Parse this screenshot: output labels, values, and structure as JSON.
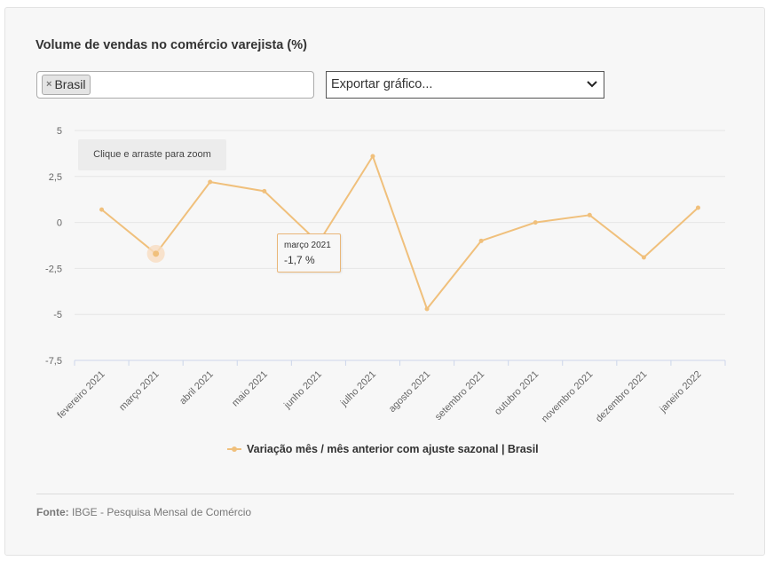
{
  "title": "Volume de vendas no comércio varejista (%)",
  "filter": {
    "tag_label": "Brasil",
    "remove_symbol": "×"
  },
  "export": {
    "placeholder": "Exportar gráfico..."
  },
  "zoom_hint": "Clique e arraste para zoom",
  "tooltip": {
    "label": "março 2021",
    "value": "-1,7 %"
  },
  "legend_label": "Variação mês / mês anterior com ajuste sazonal | Brasil",
  "source": {
    "prefix": "Fonte:",
    "text": " IBGE - Pesquisa Mensal de Comércio"
  },
  "colors": {
    "series": "#f0c07c",
    "hover_halo": "#f8dcc1",
    "tooltip_border": "#e9b678"
  },
  "chart_data": {
    "type": "line",
    "categories": [
      "fevereiro 2021",
      "março 2021",
      "abril 2021",
      "maio 2021",
      "junho 2021",
      "julho 2021",
      "agosto 2021",
      "setembro 2021",
      "outubro 2021",
      "novembro 2021",
      "dezembro 2021",
      "janeiro 2022"
    ],
    "series": [
      {
        "name": "Variação mês / mês anterior com ajuste sazonal | Brasil",
        "values": [
          0.7,
          -1.7,
          2.2,
          1.7,
          -1.1,
          3.6,
          -4.7,
          -1.0,
          0.0,
          0.4,
          -1.9,
          0.8
        ]
      }
    ],
    "y_ticks": [
      5,
      2.5,
      0,
      -2.5,
      -5,
      -7.5
    ],
    "y_tick_labels": [
      "5",
      "2,5",
      "0",
      "-2,5",
      "-5",
      "-7,5"
    ],
    "ylim": [
      -7.5,
      5
    ],
    "grid": true,
    "highlighted_index": 1,
    "title": "",
    "xlabel": "",
    "ylabel": ""
  }
}
